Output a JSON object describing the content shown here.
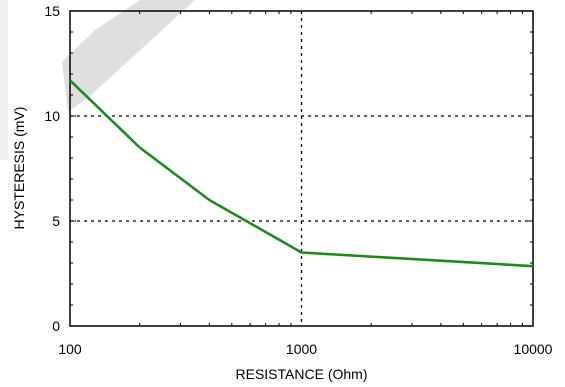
{
  "chart_data": {
    "type": "line",
    "title": "",
    "xlabel": "RESISTANCE (Ohm)",
    "ylabel": "HYSTERESIS (mV)",
    "xscale": "log",
    "xlim": [
      100,
      10000
    ],
    "ylim": [
      0,
      15
    ],
    "xticks": [
      "100",
      "1000",
      "10000"
    ],
    "yticks": [
      "0",
      "5",
      "10",
      "15"
    ],
    "grid": "dashed, at x=1000 and y=5, y=10",
    "watermark": "grey diagonal stroke, top-left",
    "series": [
      {
        "color": "#1e8a1e",
        "x": [
          100,
          200,
          400,
          1000,
          10000
        ],
        "y": [
          11.7,
          8.5,
          6.0,
          3.5,
          2.85
        ]
      }
    ]
  }
}
